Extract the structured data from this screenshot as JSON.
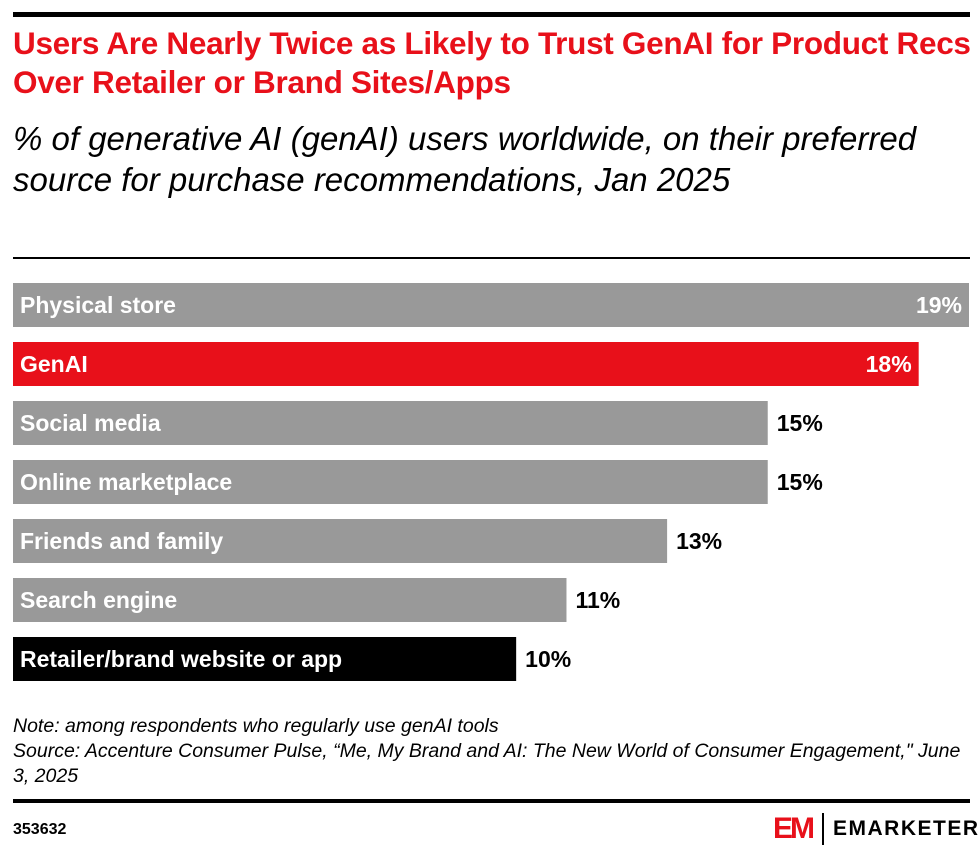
{
  "title": "Users Are Nearly Twice as Likely to Trust GenAI for Product Recs Over Retailer or Brand Sites/Apps",
  "subtitle": "% of generative AI (genAI) users worldwide, on their preferred source for purchase recommendations, Jan 2025",
  "note": "Note: among respondents who regularly use genAI tools",
  "source": "Source: Accenture Consumer Pulse, “Me, My Brand and AI: The New World of Consumer Engagement,\" June 3, 2025",
  "chart_id": "353632",
  "logo": {
    "mark": "EM",
    "text": "EMARKETER"
  },
  "colors": {
    "default": "#999999",
    "highlight": "#e8101a",
    "emphasis": "#000000"
  },
  "chart_data": {
    "type": "bar",
    "orientation": "horizontal",
    "categories": [
      "Physical store",
      "GenAI",
      "Social media",
      "Online marketplace",
      "Friends and family",
      "Search engine",
      "Retailer/brand website or app"
    ],
    "values": [
      19,
      18,
      15,
      15,
      13,
      11,
      10
    ],
    "value_labels": [
      "19%",
      "18%",
      "15%",
      "15%",
      "13%",
      "11%",
      "10%"
    ],
    "bar_colors": [
      "#999999",
      "#e8101a",
      "#999999",
      "#999999",
      "#999999",
      "#999999",
      "#000000"
    ],
    "unit": "%",
    "xlim": [
      0,
      19
    ],
    "grid": false
  }
}
